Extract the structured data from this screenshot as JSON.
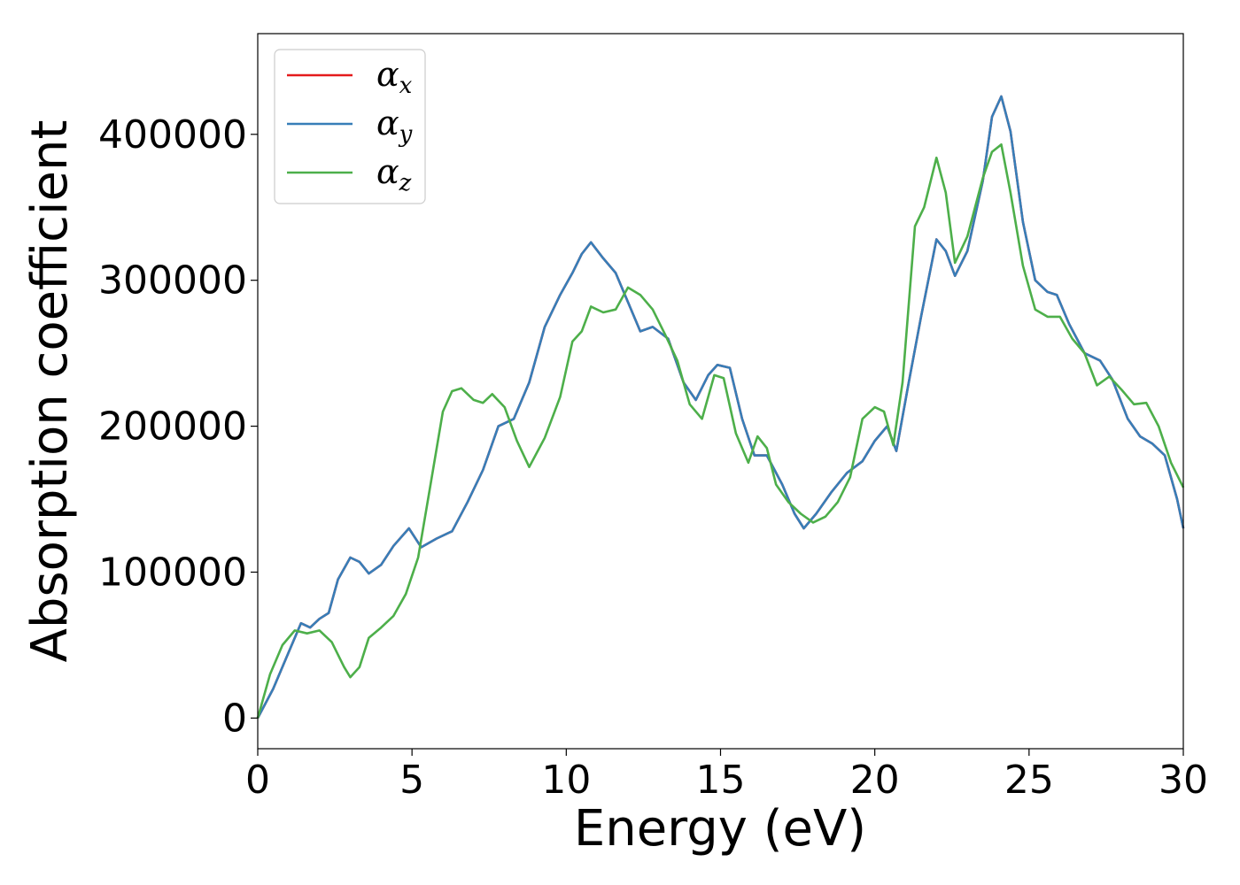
{
  "chart_data": {
    "type": "line",
    "title": "",
    "xlabel": "Energy (eV)",
    "ylabel": "Absorption coefficient",
    "xlim": [
      0,
      30
    ],
    "ylim": [
      -21000,
      469000
    ],
    "xticks": [
      0,
      5,
      10,
      15,
      20,
      25,
      30
    ],
    "yticks": [
      0,
      100000,
      200000,
      300000,
      400000
    ],
    "xtick_labels": [
      "0",
      "5",
      "10",
      "15",
      "20",
      "25",
      "30"
    ],
    "ytick_labels": [
      "0",
      "100000",
      "200000",
      "300000",
      "400000"
    ],
    "grid": false,
    "legend_position": "top-left",
    "legend": [
      {
        "base": "α",
        "sub": "x",
        "color": "#e41a1c"
      },
      {
        "base": "α",
        "sub": "y",
        "color": "#377eb8"
      },
      {
        "base": "α",
        "sub": "z",
        "color": "#4daf4a"
      }
    ],
    "series": [
      {
        "name": "α_x",
        "color": "#e41a1c",
        "x": [
          0,
          0.5,
          1.0,
          1.4,
          1.7,
          2.0,
          2.3,
          2.6,
          3.0,
          3.3,
          3.6,
          4.0,
          4.4,
          4.9,
          5.3,
          5.8,
          6.3,
          6.8,
          7.3,
          7.8,
          8.3,
          8.8,
          9.3,
          9.8,
          10.2,
          10.5,
          10.8,
          11.2,
          11.6,
          12.0,
          12.4,
          12.8,
          13.3,
          13.8,
          14.2,
          14.6,
          14.9,
          15.3,
          15.7,
          16.1,
          16.5,
          17.0,
          17.4,
          17.7,
          18.1,
          18.6,
          19.1,
          19.6,
          20.0,
          20.4,
          20.7,
          21.1,
          21.5,
          22.0,
          22.3,
          22.6,
          23.0,
          23.5,
          23.8,
          24.1,
          24.4,
          24.8,
          25.2,
          25.6,
          25.9,
          26.3,
          26.8,
          27.3,
          27.7,
          28.2,
          28.6,
          29.0,
          29.4,
          29.8,
          30.0
        ],
        "y": [
          0,
          20000,
          45000,
          65000,
          62000,
          68000,
          72000,
          95000,
          110000,
          107000,
          99000,
          105000,
          118000,
          130000,
          117000,
          123000,
          128000,
          148000,
          170000,
          200000,
          205000,
          230000,
          268000,
          290000,
          305000,
          318000,
          326000,
          315000,
          305000,
          285000,
          265000,
          268000,
          260000,
          230000,
          218000,
          235000,
          242000,
          240000,
          205000,
          180000,
          180000,
          160000,
          140000,
          130000,
          140000,
          155000,
          168000,
          176000,
          190000,
          200000,
          183000,
          230000,
          275000,
          328000,
          320000,
          303000,
          320000,
          368000,
          412000,
          426000,
          402000,
          340000,
          300000,
          292000,
          290000,
          270000,
          250000,
          245000,
          232000,
          205000,
          193000,
          188000,
          180000,
          150000,
          130000
        ]
      },
      {
        "name": "α_y",
        "color": "#377eb8",
        "x": [
          0,
          0.5,
          1.0,
          1.4,
          1.7,
          2.0,
          2.3,
          2.6,
          3.0,
          3.3,
          3.6,
          4.0,
          4.4,
          4.9,
          5.3,
          5.8,
          6.3,
          6.8,
          7.3,
          7.8,
          8.3,
          8.8,
          9.3,
          9.8,
          10.2,
          10.5,
          10.8,
          11.2,
          11.6,
          12.0,
          12.4,
          12.8,
          13.3,
          13.8,
          14.2,
          14.6,
          14.9,
          15.3,
          15.7,
          16.1,
          16.5,
          17.0,
          17.4,
          17.7,
          18.1,
          18.6,
          19.1,
          19.6,
          20.0,
          20.4,
          20.7,
          21.1,
          21.5,
          22.0,
          22.3,
          22.6,
          23.0,
          23.5,
          23.8,
          24.1,
          24.4,
          24.8,
          25.2,
          25.6,
          25.9,
          26.3,
          26.8,
          27.3,
          27.7,
          28.2,
          28.6,
          29.0,
          29.4,
          29.8,
          30.0
        ],
        "y": [
          0,
          20000,
          45000,
          65000,
          62000,
          68000,
          72000,
          95000,
          110000,
          107000,
          99000,
          105000,
          118000,
          130000,
          117000,
          123000,
          128000,
          148000,
          170000,
          200000,
          205000,
          230000,
          268000,
          290000,
          305000,
          318000,
          326000,
          315000,
          305000,
          285000,
          265000,
          268000,
          260000,
          230000,
          218000,
          235000,
          242000,
          240000,
          205000,
          180000,
          180000,
          160000,
          140000,
          130000,
          140000,
          155000,
          168000,
          176000,
          190000,
          200000,
          183000,
          230000,
          275000,
          328000,
          320000,
          303000,
          320000,
          368000,
          412000,
          426000,
          402000,
          340000,
          300000,
          292000,
          290000,
          270000,
          250000,
          245000,
          232000,
          205000,
          193000,
          188000,
          180000,
          150000,
          130000
        ]
      },
      {
        "name": "α_z",
        "color": "#4daf4a",
        "x": [
          0,
          0.4,
          0.8,
          1.2,
          1.6,
          2.0,
          2.4,
          2.8,
          3.0,
          3.3,
          3.6,
          4.0,
          4.4,
          4.8,
          5.2,
          5.6,
          6.0,
          6.3,
          6.6,
          7.0,
          7.3,
          7.6,
          8.0,
          8.4,
          8.8,
          9.3,
          9.8,
          10.2,
          10.5,
          10.8,
          11.2,
          11.6,
          12.0,
          12.4,
          12.8,
          13.2,
          13.6,
          14.0,
          14.4,
          14.8,
          15.1,
          15.5,
          15.9,
          16.2,
          16.5,
          16.8,
          17.2,
          17.6,
          18.0,
          18.4,
          18.8,
          19.2,
          19.6,
          20.0,
          20.3,
          20.6,
          20.9,
          21.3,
          21.6,
          22.0,
          22.3,
          22.6,
          23.0,
          23.5,
          23.8,
          24.1,
          24.4,
          24.8,
          25.2,
          25.6,
          26.0,
          26.4,
          26.8,
          27.2,
          27.6,
          28.0,
          28.4,
          28.8,
          29.2,
          29.6,
          30.0
        ],
        "y": [
          0,
          30000,
          50000,
          60000,
          58000,
          60000,
          52000,
          35000,
          28000,
          35000,
          55000,
          62000,
          70000,
          85000,
          110000,
          160000,
          210000,
          224000,
          226000,
          218000,
          216000,
          222000,
          213000,
          190000,
          172000,
          192000,
          220000,
          258000,
          265000,
          282000,
          278000,
          280000,
          295000,
          290000,
          280000,
          263000,
          245000,
          215000,
          205000,
          235000,
          233000,
          195000,
          175000,
          193000,
          185000,
          160000,
          148000,
          140000,
          134000,
          138000,
          148000,
          165000,
          205000,
          213000,
          210000,
          187000,
          230000,
          337000,
          350000,
          384000,
          360000,
          312000,
          330000,
          370000,
          388000,
          393000,
          360000,
          310000,
          280000,
          275000,
          275000,
          260000,
          250000,
          228000,
          234000,
          225000,
          215000,
          216000,
          200000,
          175000,
          158000
        ]
      }
    ]
  }
}
